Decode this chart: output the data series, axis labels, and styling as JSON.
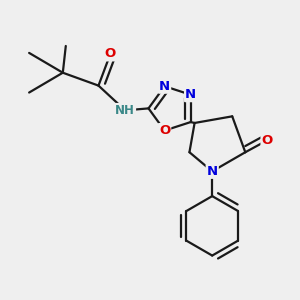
{
  "bg_color": "#efefef",
  "bond_color": "#1a1a1a",
  "bond_width": 1.6,
  "dbo": 0.055,
  "atom_colors": {
    "N": "#0000dd",
    "O": "#dd0000",
    "C": "#1a1a1a",
    "H": "#3a8888"
  },
  "fs": 9.5,
  "fs_small": 8.5,
  "xlim": [
    0,
    3.0
  ],
  "ylim": [
    0.1,
    3.1
  ]
}
